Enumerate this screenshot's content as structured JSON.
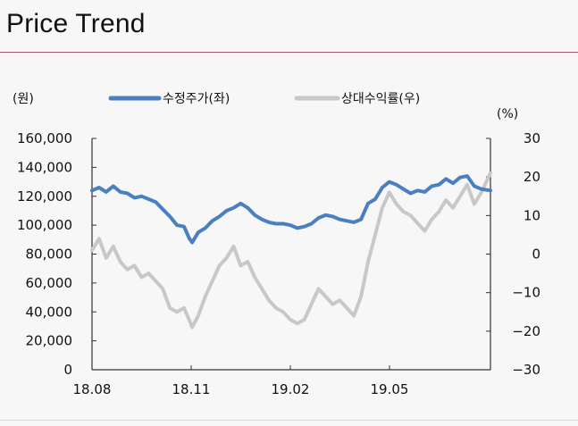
{
  "page": {
    "title": "Price Trend"
  },
  "chart_data": {
    "type": "line",
    "y_left_unit": "(원)",
    "y_right_unit": "(%)",
    "x_tick_labels": [
      "18.08",
      "18.11",
      "19.02",
      "19.05"
    ],
    "y_left_ticks": [
      "160,000",
      "140,000",
      "120,000",
      "100,000",
      "80,000",
      "60,000",
      "40,000",
      "20,000",
      "0"
    ],
    "y_right_ticks": [
      "30",
      "20",
      "10",
      "0",
      "−10",
      "−20",
      "−30"
    ],
    "ylim_left": [
      0,
      160000
    ],
    "ylim_right": [
      -30,
      30
    ],
    "x_range": [
      "2018-08-01",
      "2019-08-30"
    ],
    "series": [
      {
        "name": "수정주가(좌)",
        "axis": "left",
        "color": "#4a7fc1",
        "points": [
          [
            "2018-08-01",
            124000
          ],
          [
            "2018-08-08",
            126000
          ],
          [
            "2018-08-15",
            123000
          ],
          [
            "2018-08-22",
            127000
          ],
          [
            "2018-08-29",
            123000
          ],
          [
            "2018-09-05",
            122000
          ],
          [
            "2018-09-12",
            119000
          ],
          [
            "2018-09-19",
            120000
          ],
          [
            "2018-09-26",
            118000
          ],
          [
            "2018-10-03",
            116000
          ],
          [
            "2018-10-10",
            111000
          ],
          [
            "2018-10-17",
            106000
          ],
          [
            "2018-10-24",
            100000
          ],
          [
            "2018-10-31",
            99000
          ],
          [
            "2018-11-05",
            91000
          ],
          [
            "2018-11-08",
            88000
          ],
          [
            "2018-11-14",
            95000
          ],
          [
            "2018-11-21",
            98000
          ],
          [
            "2018-11-28",
            103000
          ],
          [
            "2018-12-05",
            106000
          ],
          [
            "2018-12-12",
            110000
          ],
          [
            "2018-12-19",
            112000
          ],
          [
            "2018-12-26",
            115000
          ],
          [
            "2019-01-02",
            112000
          ],
          [
            "2019-01-09",
            107000
          ],
          [
            "2019-01-16",
            104000
          ],
          [
            "2019-01-23",
            102000
          ],
          [
            "2019-01-30",
            101000
          ],
          [
            "2019-02-06",
            101000
          ],
          [
            "2019-02-13",
            100000
          ],
          [
            "2019-02-20",
            98000
          ],
          [
            "2019-02-27",
            99000
          ],
          [
            "2019-03-06",
            101000
          ],
          [
            "2019-03-13",
            105000
          ],
          [
            "2019-03-20",
            107000
          ],
          [
            "2019-03-27",
            106000
          ],
          [
            "2019-04-03",
            104000
          ],
          [
            "2019-04-10",
            103000
          ],
          [
            "2019-04-17",
            102000
          ],
          [
            "2019-04-24",
            104000
          ],
          [
            "2019-05-01",
            115000
          ],
          [
            "2019-05-08",
            118000
          ],
          [
            "2019-05-15",
            126000
          ],
          [
            "2019-05-22",
            130000
          ],
          [
            "2019-05-29",
            128000
          ],
          [
            "2019-06-05",
            125000
          ],
          [
            "2019-06-12",
            122000
          ],
          [
            "2019-06-19",
            124000
          ],
          [
            "2019-06-26",
            123000
          ],
          [
            "2019-07-03",
            127000
          ],
          [
            "2019-07-10",
            128000
          ],
          [
            "2019-07-17",
            132000
          ],
          [
            "2019-07-24",
            129000
          ],
          [
            "2019-07-31",
            133000
          ],
          [
            "2019-08-07",
            134000
          ],
          [
            "2019-08-14",
            127000
          ],
          [
            "2019-08-21",
            125000
          ],
          [
            "2019-08-30",
            124000
          ]
        ]
      },
      {
        "name": "상대수익률(우)",
        "axis": "right",
        "color": "#c8c8c8",
        "points": [
          [
            "2018-08-01",
            1
          ],
          [
            "2018-08-08",
            4
          ],
          [
            "2018-08-15",
            -1
          ],
          [
            "2018-08-22",
            2
          ],
          [
            "2018-08-29",
            -2
          ],
          [
            "2018-09-05",
            -4
          ],
          [
            "2018-09-12",
            -3
          ],
          [
            "2018-09-19",
            -6
          ],
          [
            "2018-09-26",
            -5
          ],
          [
            "2018-10-03",
            -7
          ],
          [
            "2018-10-10",
            -9
          ],
          [
            "2018-10-17",
            -14
          ],
          [
            "2018-10-24",
            -15
          ],
          [
            "2018-10-31",
            -14
          ],
          [
            "2018-11-05",
            -17
          ],
          [
            "2018-11-08",
            -19
          ],
          [
            "2018-11-14",
            -16
          ],
          [
            "2018-11-21",
            -11
          ],
          [
            "2018-11-28",
            -7
          ],
          [
            "2018-12-05",
            -3
          ],
          [
            "2018-12-12",
            -1
          ],
          [
            "2018-12-19",
            2
          ],
          [
            "2018-12-26",
            -3
          ],
          [
            "2019-01-02",
            -2
          ],
          [
            "2019-01-09",
            -6
          ],
          [
            "2019-01-16",
            -9
          ],
          [
            "2019-01-23",
            -12
          ],
          [
            "2019-01-30",
            -14
          ],
          [
            "2019-02-06",
            -15
          ],
          [
            "2019-02-13",
            -17
          ],
          [
            "2019-02-20",
            -18
          ],
          [
            "2019-02-27",
            -17
          ],
          [
            "2019-03-06",
            -13
          ],
          [
            "2019-03-13",
            -9
          ],
          [
            "2019-03-20",
            -11
          ],
          [
            "2019-03-27",
            -13
          ],
          [
            "2019-04-03",
            -12
          ],
          [
            "2019-04-10",
            -14
          ],
          [
            "2019-04-17",
            -16
          ],
          [
            "2019-04-24",
            -11
          ],
          [
            "2019-05-01",
            -2
          ],
          [
            "2019-05-08",
            5
          ],
          [
            "2019-05-15",
            12
          ],
          [
            "2019-05-22",
            16
          ],
          [
            "2019-05-29",
            13
          ],
          [
            "2019-06-05",
            11
          ],
          [
            "2019-06-12",
            10
          ],
          [
            "2019-06-19",
            8
          ],
          [
            "2019-06-26",
            6
          ],
          [
            "2019-07-03",
            9
          ],
          [
            "2019-07-10",
            11
          ],
          [
            "2019-07-17",
            14
          ],
          [
            "2019-07-24",
            12
          ],
          [
            "2019-07-31",
            15
          ],
          [
            "2019-08-07",
            18
          ],
          [
            "2019-08-14",
            13
          ],
          [
            "2019-08-21",
            16
          ],
          [
            "2019-08-30",
            21
          ]
        ]
      }
    ],
    "grid": false,
    "legend_position": "top"
  }
}
